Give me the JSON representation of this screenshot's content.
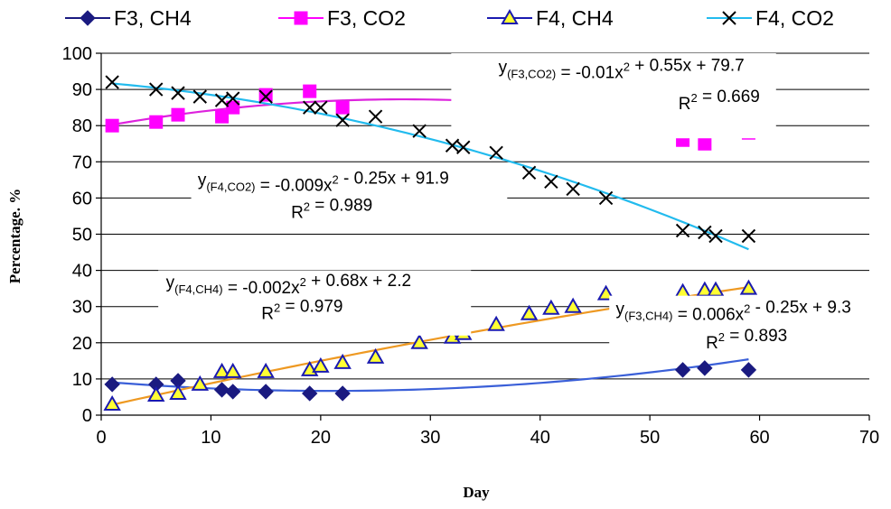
{
  "chart_data": {
    "type": "scatter",
    "xlabel": "Day",
    "ylabel": "Percentage. %",
    "xlim": [
      0,
      70
    ],
    "ylim": [
      0,
      100
    ],
    "xticks": [
      0,
      10,
      20,
      30,
      40,
      50,
      60,
      70
    ],
    "yticks": [
      0,
      10,
      20,
      30,
      40,
      50,
      60,
      70,
      80,
      90,
      100
    ],
    "grid": "horizontal",
    "legend_position": "top",
    "series": [
      {
        "name": "F3, CH4",
        "marker": "diamond",
        "color": "#1a1a80",
        "fill": "#1a1a80",
        "line_color": "#3a5fd8",
        "x": [
          1,
          5,
          7,
          11,
          12,
          15,
          19,
          22,
          53,
          55,
          59
        ],
        "y": [
          8.5,
          8.5,
          9.5,
          7,
          6.5,
          6.5,
          6,
          6,
          12.5,
          13,
          12.5
        ],
        "trend": {
          "a": 0.006,
          "b": -0.25,
          "c": 9.3,
          "x_range": [
            1,
            59
          ]
        }
      },
      {
        "name": "F3, CO2",
        "marker": "square",
        "color": "#ff00ff",
        "fill": "#ff00ff",
        "line_color": "#dd22dd",
        "x": [
          1,
          5,
          7,
          11,
          12,
          15,
          19,
          22,
          53,
          55,
          59
        ],
        "y": [
          80,
          81,
          83,
          82.5,
          85,
          88.5,
          89.5,
          85,
          76,
          75,
          78
        ],
        "trend": {
          "a": -0.01,
          "b": 0.55,
          "c": 79.7,
          "x_range": [
            1,
            59
          ]
        }
      },
      {
        "name": "F4, CH4",
        "marker": "triangle",
        "color": "#1a1ab0",
        "fill": "#ffff33",
        "line_color": "#ee9922",
        "x": [
          1,
          5,
          7,
          9,
          11,
          12,
          15,
          19,
          20,
          22,
          25,
          29,
          32,
          33,
          36,
          39,
          41,
          43,
          46,
          53,
          55,
          56,
          59
        ],
        "y": [
          3,
          5.5,
          6,
          8.5,
          12,
          12,
          12,
          12.5,
          13.5,
          14.5,
          16,
          20,
          21.5,
          22.5,
          25,
          28,
          29.5,
          30,
          33.5,
          34,
          34.5,
          34.5,
          35
        ],
        "trend": {
          "a": -0.002,
          "b": 0.68,
          "c": 2.2,
          "x_range": [
            1,
            59
          ]
        }
      },
      {
        "name": "F4, CO2",
        "marker": "x",
        "color": "#000000",
        "fill": "none",
        "line_color": "#22bbee",
        "x": [
          1,
          5,
          7,
          9,
          11,
          12,
          15,
          19,
          20,
          22,
          25,
          29,
          32,
          33,
          36,
          39,
          41,
          43,
          46,
          53,
          55,
          56,
          59
        ],
        "y": [
          92,
          90,
          89,
          88,
          87,
          87.5,
          88,
          85,
          85,
          81.5,
          82.5,
          78.5,
          74.5,
          74,
          72.5,
          67,
          64.5,
          62.5,
          60,
          51,
          50.5,
          49.5,
          49.5
        ],
        "trend": {
          "a": -0.009,
          "b": -0.25,
          "c": 91.9,
          "x_range": [
            1,
            59
          ]
        }
      }
    ],
    "annotations": [
      {
        "sub": "(F3,CO2)",
        "equation": " = -0.01x² + 0.55x + 79.7",
        "r2": "R² = 0.669",
        "anchor": [
          36.2,
          94.6
        ],
        "r2_anchor": [
          52.6,
          84.6
        ],
        "mask": [
          31.9,
          100,
          61.5,
          76.5
        ]
      },
      {
        "sub": "(F4,CO2)",
        "equation": " = -0.009x² - 0.25x + 91.9",
        "r2": "R² = 0.989",
        "anchor": [
          8.8,
          63.5
        ],
        "r2_anchor": [
          17.3,
          54.5
        ],
        "mask": [
          8.2,
          69.5,
          37.0,
          51.0
        ]
      },
      {
        "sub": "(F4,CH4)",
        "equation": " = -0.002x² + 0.68x + 2.2",
        "r2": "R² = 0.979",
        "anchor": [
          5.9,
          35.2
        ],
        "r2_anchor": [
          14.6,
          26.5
        ],
        "mask": [
          5.2,
          40.0,
          33.7,
          22.0
        ]
      },
      {
        "sub": "(F3,CH4)",
        "equation": " = 0.006x² - 0.25x + 9.3",
        "r2": "R² = 0.893",
        "anchor": [
          46.9,
          27.8
        ],
        "r2_anchor": [
          55.1,
          18.5
        ],
        "mask": [
          46.3,
          33.0,
          71.2,
          16.0
        ]
      }
    ]
  }
}
